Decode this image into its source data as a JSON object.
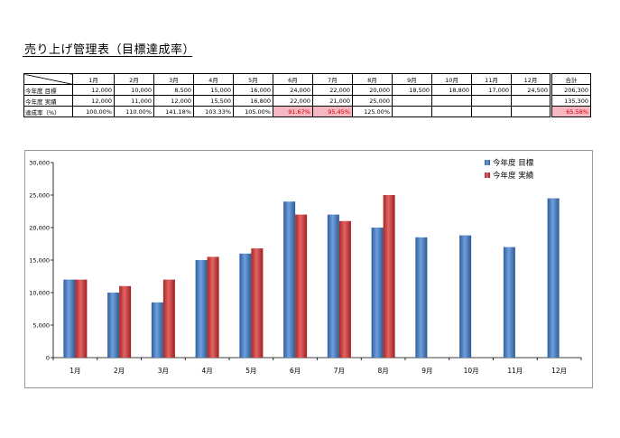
{
  "page": {
    "title": "売り上げ管理表（目標達成率）"
  },
  "table": {
    "headers": [
      "1月",
      "2月",
      "3月",
      "4月",
      "5月",
      "6月",
      "7月",
      "8月",
      "9月",
      "10月",
      "11月",
      "12月",
      "合計"
    ],
    "rows": [
      {
        "label": "今年度 目標",
        "cells": [
          "12,000",
          "10,000",
          "8,500",
          "15,000",
          "16,000",
          "24,000",
          "22,000",
          "20,000",
          "18,500",
          "18,800",
          "17,000",
          "24,500",
          "206,300"
        ]
      },
      {
        "label": "今年度 実績",
        "cells": [
          "12,000",
          "11,000",
          "12,000",
          "15,500",
          "16,800",
          "22,000",
          "21,000",
          "25,000",
          "",
          "",
          "",
          "",
          "135,300"
        ]
      },
      {
        "label": "達成率（%）",
        "cells": [
          "100.00%",
          "110.00%",
          "141.18%",
          "103.33%",
          "105.00%",
          "91.67%",
          "95.45%",
          "125.00%",
          "",
          "",
          "",
          "",
          "65.58%"
        ]
      }
    ],
    "highlight_color": "#f5b7c2",
    "highlight_text_color": "#d00000"
  },
  "chart_data": {
    "type": "bar",
    "categories": [
      "1月",
      "2月",
      "3月",
      "4月",
      "5月",
      "6月",
      "7月",
      "8月",
      "9月",
      "10月",
      "11月",
      "12月"
    ],
    "series": [
      {
        "name": "今年度 目標",
        "color": "#4a7ebb",
        "values": [
          12000,
          10000,
          8500,
          15000,
          16000,
          24000,
          22000,
          20000,
          18500,
          18800,
          17000,
          24500
        ]
      },
      {
        "name": "今年度 実績",
        "color": "#cc3b3b",
        "values": [
          12000,
          11000,
          12000,
          15500,
          16800,
          22000,
          21000,
          25000,
          null,
          null,
          null,
          null
        ]
      }
    ],
    "ylim": [
      0,
      30000
    ],
    "yticks": [
      0,
      5000,
      10000,
      15000,
      20000,
      25000,
      30000
    ],
    "ytick_labels": [
      "0",
      "5,000",
      "10,000",
      "15,000",
      "20,000",
      "25,000",
      "30,000"
    ],
    "grid": false,
    "legend_position": "top-right"
  }
}
